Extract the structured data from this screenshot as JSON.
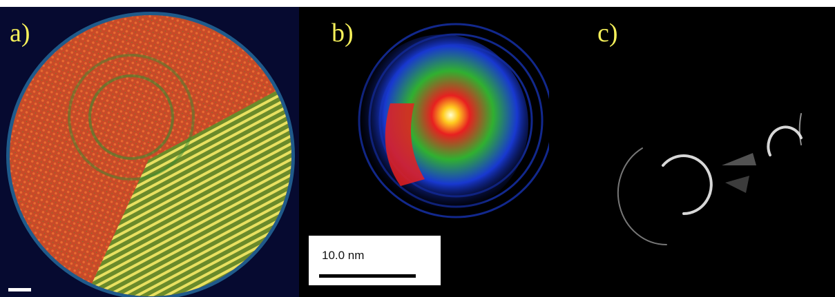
{
  "panels": [
    {
      "label": "a)"
    },
    {
      "label": "b)"
    },
    {
      "label": "c)"
    }
  ],
  "scale_bar": {
    "label": "10.0 nm"
  }
}
